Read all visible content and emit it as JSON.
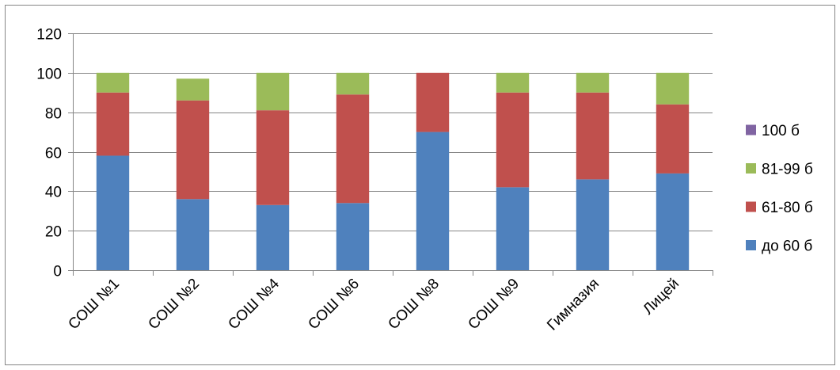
{
  "chart_data": {
    "type": "bar",
    "stacked": true,
    "title": "",
    "xlabel": "",
    "ylabel": "",
    "ylim": [
      0,
      120
    ],
    "yticks": [
      0,
      20,
      40,
      60,
      80,
      100,
      120
    ],
    "grid": true,
    "legend_position": "right",
    "categories": [
      "СОШ №1",
      "СОШ №2",
      "СОШ №4",
      "СОШ №6",
      "СОШ №8",
      "СОШ №9",
      "Гимназия",
      "Лицей"
    ],
    "series": [
      {
        "name": "до 60 б",
        "color": "#4F81BD",
        "values": [
          58,
          36,
          33,
          34,
          70,
          42,
          46,
          49
        ]
      },
      {
        "name": "61-80 б",
        "color": "#C0504D",
        "values": [
          32,
          50,
          48,
          55,
          30,
          48,
          44,
          35
        ]
      },
      {
        "name": "81-99 б",
        "color": "#9BBB59",
        "values": [
          10,
          11,
          19,
          11,
          0,
          10,
          10,
          16
        ]
      },
      {
        "name": "100 б",
        "color": "#8064A2",
        "values": [
          0,
          0,
          0,
          0,
          0,
          0,
          0,
          0
        ]
      }
    ],
    "legend_order": [
      "100 б",
      "81-99 б",
      "61-80 б",
      "до 60 б"
    ]
  }
}
